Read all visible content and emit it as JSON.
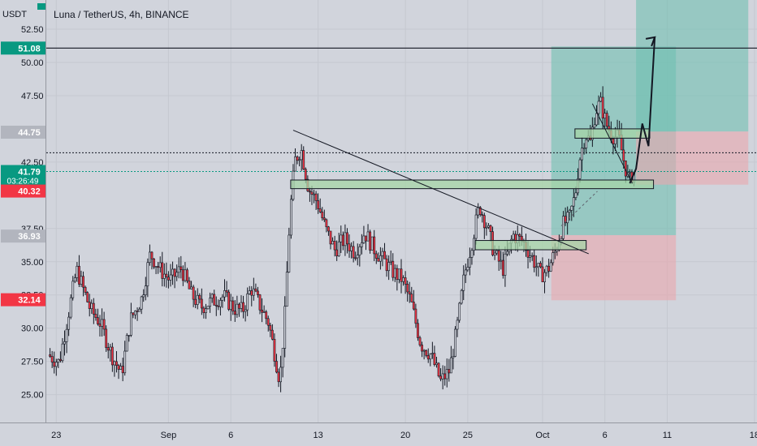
{
  "header": {
    "currency": "USDT",
    "title": "Luna / TetherUS, 4h, BINANCE"
  },
  "chart_data": {
    "type": "candlestick",
    "ylim": [
      22.9,
      54.7
    ],
    "y_ticks": [
      "52.50",
      "50.00",
      "47.50",
      "42.50",
      "37.50",
      "35.00",
      "32.50",
      "30.00",
      "27.50",
      "25.00"
    ],
    "x_ticks": [
      "23",
      "Sep",
      "6",
      "13",
      "20",
      "25",
      "Oct",
      "6",
      "11",
      "18"
    ],
    "x_range_days": [
      -9.8,
      47.2
    ],
    "price_badges": [
      {
        "label": "51.08",
        "value": 51.08,
        "color": "#089981"
      },
      {
        "label": "44.75",
        "value": 44.75,
        "color": "#b2b5be"
      },
      {
        "label": "41.79",
        "value": 41.79,
        "color": "#089981",
        "sub": "03:26:49"
      },
      {
        "label": "40.32",
        "value": 40.32,
        "color": "#f23645"
      },
      {
        "label": "36.93",
        "value": 36.93,
        "color": "#b2b5be"
      },
      {
        "label": "32.14",
        "value": 32.14,
        "color": "#f23645"
      }
    ],
    "horizontal_lines": [
      {
        "value": 51.08,
        "style": "solid",
        "color": "#131722"
      },
      {
        "value": 43.2,
        "style": "dotted",
        "color": "#131722"
      },
      {
        "value": 41.79,
        "style": "dotted",
        "color": "#089981"
      }
    ],
    "long_positions": [
      {
        "start_day": 30.7,
        "end_day": 40.7,
        "entry": 37.0,
        "target": 51.2,
        "stop": 32.1
      },
      {
        "start_day": 37.5,
        "end_day": 46.5,
        "entry": 44.8,
        "target": 54.7,
        "stop": 40.8
      }
    ],
    "zones": [
      {
        "start_day": 9.8,
        "end_day": 38.9,
        "low": 40.5,
        "high": 41.15
      },
      {
        "start_day": 24.6,
        "end_day": 33.5,
        "low": 35.9,
        "high": 36.6
      },
      {
        "start_day": 32.6,
        "end_day": 38.6,
        "low": 44.3,
        "high": 45.0
      }
    ],
    "trendlines": [
      {
        "from": [
          10.0,
          44.9
        ],
        "to": [
          33.7,
          35.6
        ],
        "style": "solid"
      },
      {
        "from": [
          34.0,
          46.9
        ],
        "to": [
          37.2,
          40.9
        ],
        "style": "solid"
      },
      {
        "from": [
          31.5,
          37.7
        ],
        "to": [
          34.4,
          40.3
        ],
        "style": "dashed"
      }
    ],
    "projection_path": [
      [
        37.0,
        40.9
      ],
      [
        37.5,
        42.0
      ],
      [
        38.0,
        45.4
      ],
      [
        38.5,
        43.7
      ],
      [
        39.0,
        51.9
      ]
    ],
    "series_anchors": [
      [
        -9.5,
        28.0
      ],
      [
        -8.6,
        27.4
      ],
      [
        -7.2,
        34.4
      ],
      [
        -6.1,
        31.4
      ],
      [
        -5.3,
        30.4
      ],
      [
        -4.4,
        28.0
      ],
      [
        -3.6,
        26.5
      ],
      [
        -2.9,
        30.6
      ],
      [
        -2.0,
        32.2
      ],
      [
        -1.3,
        35.6
      ],
      [
        -0.5,
        34.4
      ],
      [
        0.3,
        33.6
      ],
      [
        1.2,
        34.5
      ],
      [
        2.0,
        32.5
      ],
      [
        2.8,
        31.6
      ],
      [
        3.6,
        32.0
      ],
      [
        4.6,
        32.4
      ],
      [
        5.4,
        31.5
      ],
      [
        6.1,
        31.3
      ],
      [
        6.8,
        33.0
      ],
      [
        7.5,
        31.7
      ],
      [
        8.2,
        30.4
      ],
      [
        8.7,
        28.0
      ],
      [
        9.1,
        26.0
      ],
      [
        9.5,
        31.0
      ],
      [
        9.9,
        38.5
      ],
      [
        10.3,
        42.6
      ],
      [
        10.8,
        43.5
      ],
      [
        11.4,
        40.5
      ],
      [
        12.1,
        39.5
      ],
      [
        12.8,
        37.4
      ],
      [
        13.5,
        35.9
      ],
      [
        14.3,
        36.7
      ],
      [
        15.1,
        35.7
      ],
      [
        15.9,
        37.2
      ],
      [
        16.7,
        35.9
      ],
      [
        17.5,
        35.0
      ],
      [
        18.2,
        34.2
      ],
      [
        18.9,
        33.7
      ],
      [
        19.6,
        32.0
      ],
      [
        20.4,
        28.8
      ],
      [
        21.2,
        28.0
      ],
      [
        22.0,
        26.0
      ],
      [
        22.7,
        26.8
      ],
      [
        23.3,
        30.0
      ],
      [
        23.9,
        34.0
      ],
      [
        24.5,
        36.5
      ],
      [
        25.1,
        39.2
      ],
      [
        25.7,
        37.7
      ],
      [
        26.3,
        35.6
      ],
      [
        27.0,
        34.5
      ],
      [
        27.8,
        37.0
      ],
      [
        28.6,
        36.5
      ],
      [
        29.4,
        35.2
      ],
      [
        30.0,
        34.0
      ],
      [
        30.6,
        34.4
      ],
      [
        31.2,
        35.8
      ],
      [
        31.8,
        37.8
      ],
      [
        32.3,
        38.2
      ],
      [
        32.8,
        40.1
      ],
      [
        33.1,
        42.6
      ],
      [
        33.6,
        44.6
      ],
      [
        34.0,
        44.0
      ],
      [
        34.4,
        46.3
      ],
      [
        34.8,
        47.0
      ],
      [
        35.3,
        45.3
      ],
      [
        35.8,
        44.5
      ],
      [
        36.3,
        44.3
      ],
      [
        36.7,
        42.5
      ],
      [
        37.1,
        41.0
      ],
      [
        37.4,
        41.7
      ]
    ]
  },
  "colors": {
    "background": "#d1d4dc",
    "candle_up": "#131722",
    "candle_down": "#f23645",
    "profit_zone": "#6fbfb0",
    "loss_zone": "#e9a7ad",
    "zone_fill": "#a5d6a7"
  }
}
